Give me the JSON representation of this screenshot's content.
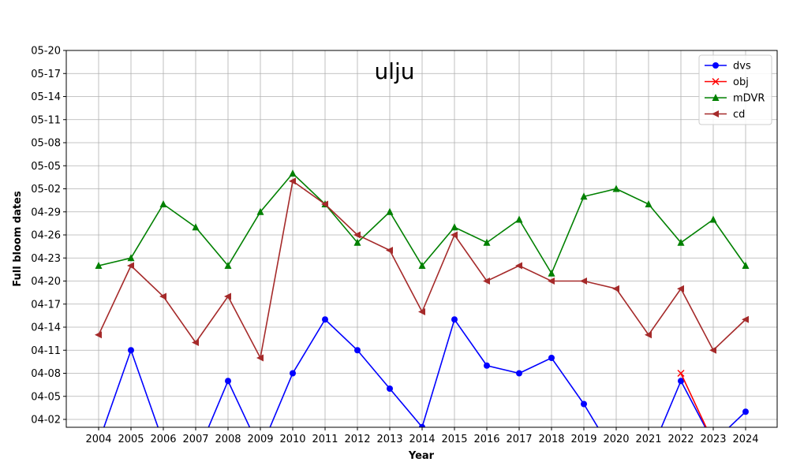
{
  "chart_data": {
    "type": "line",
    "title": "ulju",
    "xlabel": "Year",
    "ylabel": "Full bloom dates",
    "categories": [
      "2004",
      "2005",
      "2006",
      "2007",
      "2008",
      "2009",
      "2010",
      "2011",
      "2012",
      "2013",
      "2014",
      "2015",
      "2016",
      "2017",
      "2018",
      "2019",
      "2020",
      "2021",
      "2022",
      "2023",
      "2024"
    ],
    "y_ticks": [
      "04-02",
      "04-05",
      "04-08",
      "04-11",
      "04-14",
      "04-17",
      "04-20",
      "04-23",
      "04-26",
      "04-29",
      "05-02",
      "05-05",
      "05-08",
      "05-11",
      "05-14",
      "05-17",
      "05-20"
    ],
    "ylim": [
      "04-01",
      "05-20"
    ],
    "grid": true,
    "legend_position": "top-right",
    "series": [
      {
        "name": "dvs",
        "color": "#0000ff",
        "marker": "circle",
        "values": [
          "03-30",
          "04-11",
          "03-30",
          "03-28",
          "04-07",
          "03-29",
          "04-08",
          "04-15",
          "04-11",
          "04-06",
          "04-01",
          "04-15",
          "04-09",
          "04-08",
          "04-10",
          "04-04",
          "03-28",
          "03-28",
          "04-07",
          "03-30",
          "04-03"
        ]
      },
      {
        "name": "obj",
        "color": "#ff0000",
        "marker": "x",
        "values": [
          null,
          null,
          null,
          null,
          null,
          null,
          null,
          null,
          null,
          null,
          null,
          null,
          null,
          null,
          null,
          null,
          null,
          null,
          "04-08",
          "03-30",
          null
        ]
      },
      {
        "name": "mDVR",
        "color": "#008000",
        "marker": "triangle-up",
        "values": [
          "04-22",
          "04-23",
          "04-30",
          "04-27",
          "04-22",
          "04-29",
          "05-04",
          "04-30",
          "04-25",
          "04-29",
          "04-22",
          "04-27",
          "04-25",
          "04-28",
          "04-21",
          "05-01",
          "05-02",
          "04-30",
          "04-25",
          "04-28",
          "04-22"
        ]
      },
      {
        "name": "cd",
        "color": "#a52a2a",
        "marker": "triangle-left",
        "values": [
          "04-13",
          "04-22",
          "04-18",
          "04-12",
          "04-18",
          "04-10",
          "05-03",
          "04-30",
          "04-26",
          "04-24",
          "04-16",
          "04-26",
          "04-20",
          "04-22",
          "04-20",
          "04-20",
          "04-19",
          "04-13",
          "04-19",
          "04-11",
          "04-15"
        ]
      }
    ]
  }
}
